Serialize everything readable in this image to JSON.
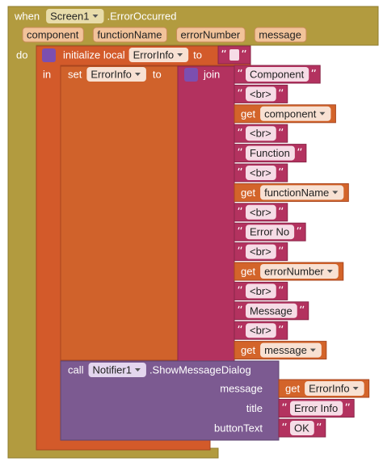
{
  "event": {
    "keyword": "when",
    "component": "Screen1",
    "name": ".ErrorOccurred",
    "params": [
      "component",
      "functionName",
      "errorNumber",
      "message"
    ],
    "do": "do"
  },
  "local": {
    "label": "initialize local",
    "variable": "ErrorInfo",
    "to": "to",
    "in": "in"
  },
  "set": {
    "keyword": "set",
    "variable": "ErrorInfo",
    "to": "to"
  },
  "join": {
    "label": "join",
    "items": [
      {
        "text": "Component"
      },
      {
        "text": "<br>"
      },
      {
        "get": "get",
        "variable": "component"
      },
      {
        "text": "<br>"
      },
      {
        "text": "Function"
      },
      {
        "text": "<br>"
      },
      {
        "get": "get",
        "variable": "functionName"
      },
      {
        "text": "<br>"
      },
      {
        "text": "Error No"
      },
      {
        "text": "<br>"
      },
      {
        "get": "get",
        "variable": "errorNumber"
      },
      {
        "text": "<br>"
      },
      {
        "text": "Message"
      },
      {
        "text": "<br>"
      },
      {
        "get": "get",
        "variable": "message"
      }
    ]
  },
  "call": {
    "keyword": "call",
    "component": "Notifier1",
    "method": ".ShowMessageDialog",
    "args": [
      {
        "name": "message",
        "get": "get",
        "variable": "ErrorInfo"
      },
      {
        "name": "title",
        "text": "Error Info"
      },
      {
        "name": "buttonText",
        "text": "OK"
      }
    ]
  }
}
